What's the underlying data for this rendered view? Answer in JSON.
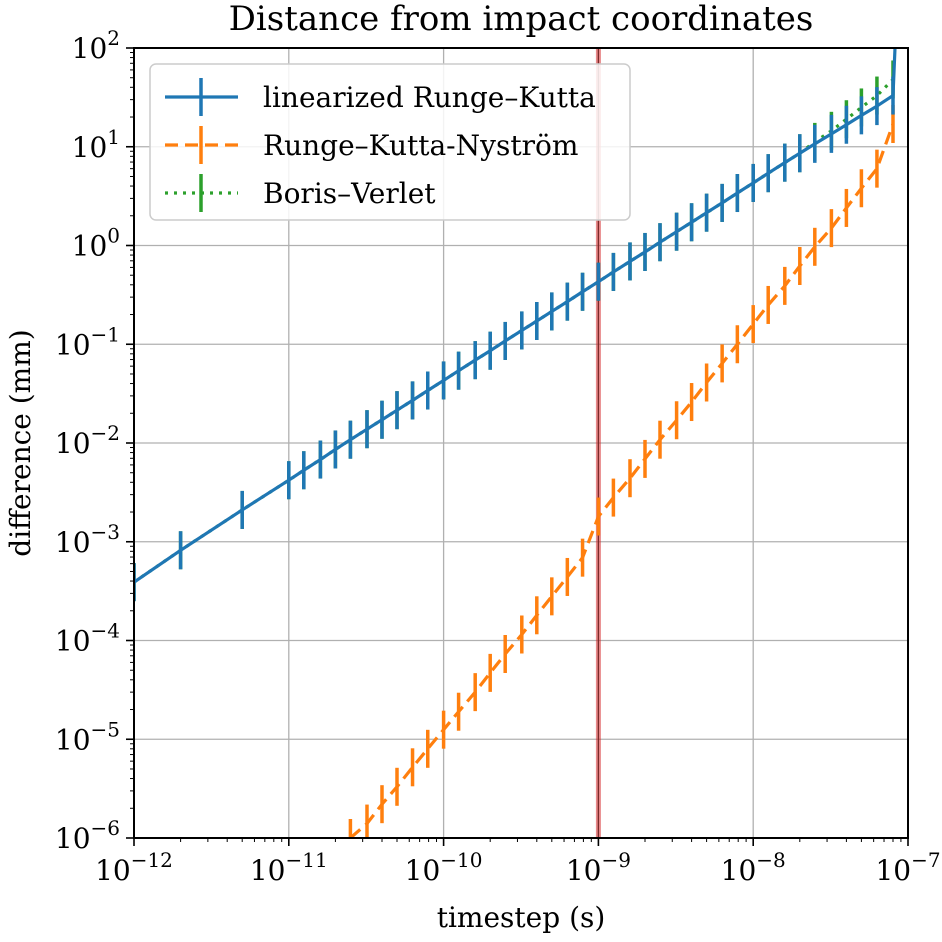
{
  "chart_data": {
    "type": "line",
    "title": "Distance from impact coordinates",
    "xlabel": "timestep (s)",
    "ylabel": "difference (mm)",
    "xscale": "log",
    "yscale": "log",
    "xlim": [
      1e-12,
      1e-07
    ],
    "ylim": [
      1e-06,
      100
    ],
    "grid": true,
    "legend_position": "top-left",
    "x_ticks": [
      {
        "value": 1e-12,
        "base": "10",
        "exp": "−12"
      },
      {
        "value": 1e-11,
        "base": "10",
        "exp": "−11"
      },
      {
        "value": 1e-10,
        "base": "10",
        "exp": "−10"
      },
      {
        "value": 1e-09,
        "base": "10",
        "exp": "−9"
      },
      {
        "value": 1e-08,
        "base": "10",
        "exp": "−8"
      },
      {
        "value": 1e-07,
        "base": "10",
        "exp": "−7"
      }
    ],
    "y_ticks": [
      {
        "value": 1e-06,
        "base": "10",
        "exp": "−6"
      },
      {
        "value": 1e-05,
        "base": "10",
        "exp": "−5"
      },
      {
        "value": 0.0001,
        "base": "10",
        "exp": "−4"
      },
      {
        "value": 0.001,
        "base": "10",
        "exp": "−3"
      },
      {
        "value": 0.01,
        "base": "10",
        "exp": "−2"
      },
      {
        "value": 0.1,
        "base": "10",
        "exp": "−1"
      },
      {
        "value": 1,
        "base": "10",
        "exp": "0"
      },
      {
        "value": 10,
        "base": "10",
        "exp": "1"
      },
      {
        "value": 100,
        "base": "10",
        "exp": "2"
      }
    ],
    "reference_line": {
      "x": 1e-09,
      "color": "#d62728"
    },
    "x": [
      1e-12,
      2e-12,
      5e-12,
      1e-11,
      1.25e-11,
      1.6e-11,
      2e-11,
      2.5e-11,
      3.2e-11,
      4e-11,
      5e-11,
      6.3e-11,
      7.9e-11,
      1e-10,
      1.25e-10,
      1.6e-10,
      2e-10,
      2.5e-10,
      3.2e-10,
      4e-10,
      5e-10,
      6.3e-10,
      7.9e-10,
      1e-09,
      1.25e-09,
      1.6e-09,
      2e-09,
      2.5e-09,
      3.2e-09,
      4e-09,
      5e-09,
      6.3e-09,
      7.9e-09,
      1e-08,
      1.25e-08,
      1.6e-08,
      2e-08,
      2.5e-08,
      3.2e-08,
      4e-08,
      5e-08,
      6.3e-08,
      8e-08
    ],
    "series": [
      {
        "name": "linearized Runge–Kutta",
        "color": "#1f77b4",
        "style": "solid",
        "values": [
          0.00039,
          0.00082,
          0.0021,
          0.0042,
          0.0053,
          0.0068,
          0.0086,
          0.0108,
          0.0138,
          0.0172,
          0.0215,
          0.027,
          0.034,
          0.043,
          0.054,
          0.069,
          0.086,
          0.108,
          0.138,
          0.172,
          0.215,
          0.27,
          0.34,
          0.43,
          0.54,
          0.69,
          0.86,
          1.08,
          1.38,
          1.72,
          2.15,
          2.7,
          3.4,
          4.3,
          5.4,
          6.9,
          8.6,
          10.7,
          13.5,
          16.7,
          20.8,
          25.8,
          33
        ],
        "end_spike": 100
      },
      {
        "name": "Runge–Kutta-Nyström",
        "color": "#ff7f0e",
        "style": "dashed",
        "values": [
          null,
          null,
          null,
          null,
          null,
          null,
          null,
          1e-06,
          1.4e-06,
          2.2e-06,
          3.3e-06,
          5.2e-06,
          8e-06,
          1.25e-05,
          1.9e-05,
          3e-05,
          4.7e-05,
          7.3e-05,
          0.000115,
          0.00018,
          0.00028,
          0.00044,
          0.00069,
          0.0018,
          0.0028,
          0.0044,
          0.0069,
          0.0108,
          0.017,
          0.026,
          0.041,
          0.064,
          0.1,
          0.16,
          0.25,
          0.39,
          0.62,
          0.97,
          1.5,
          2.4,
          3.8,
          6.0,
          17
        ]
      },
      {
        "name": "Boris–Verlet",
        "color": "#2ca02c",
        "style": "dotted",
        "values": [
          0.00039,
          0.00082,
          0.0021,
          0.0042,
          0.0053,
          0.0068,
          0.0086,
          0.0108,
          0.0138,
          0.0172,
          0.0215,
          0.027,
          0.034,
          0.043,
          0.054,
          0.069,
          0.086,
          0.108,
          0.138,
          0.172,
          0.215,
          0.27,
          0.34,
          0.43,
          0.54,
          0.69,
          0.86,
          1.08,
          1.38,
          1.72,
          2.15,
          2.7,
          3.4,
          4.3,
          5.4,
          6.9,
          8.6,
          11.2,
          14.5,
          19,
          25,
          33,
          48
        ]
      }
    ]
  }
}
